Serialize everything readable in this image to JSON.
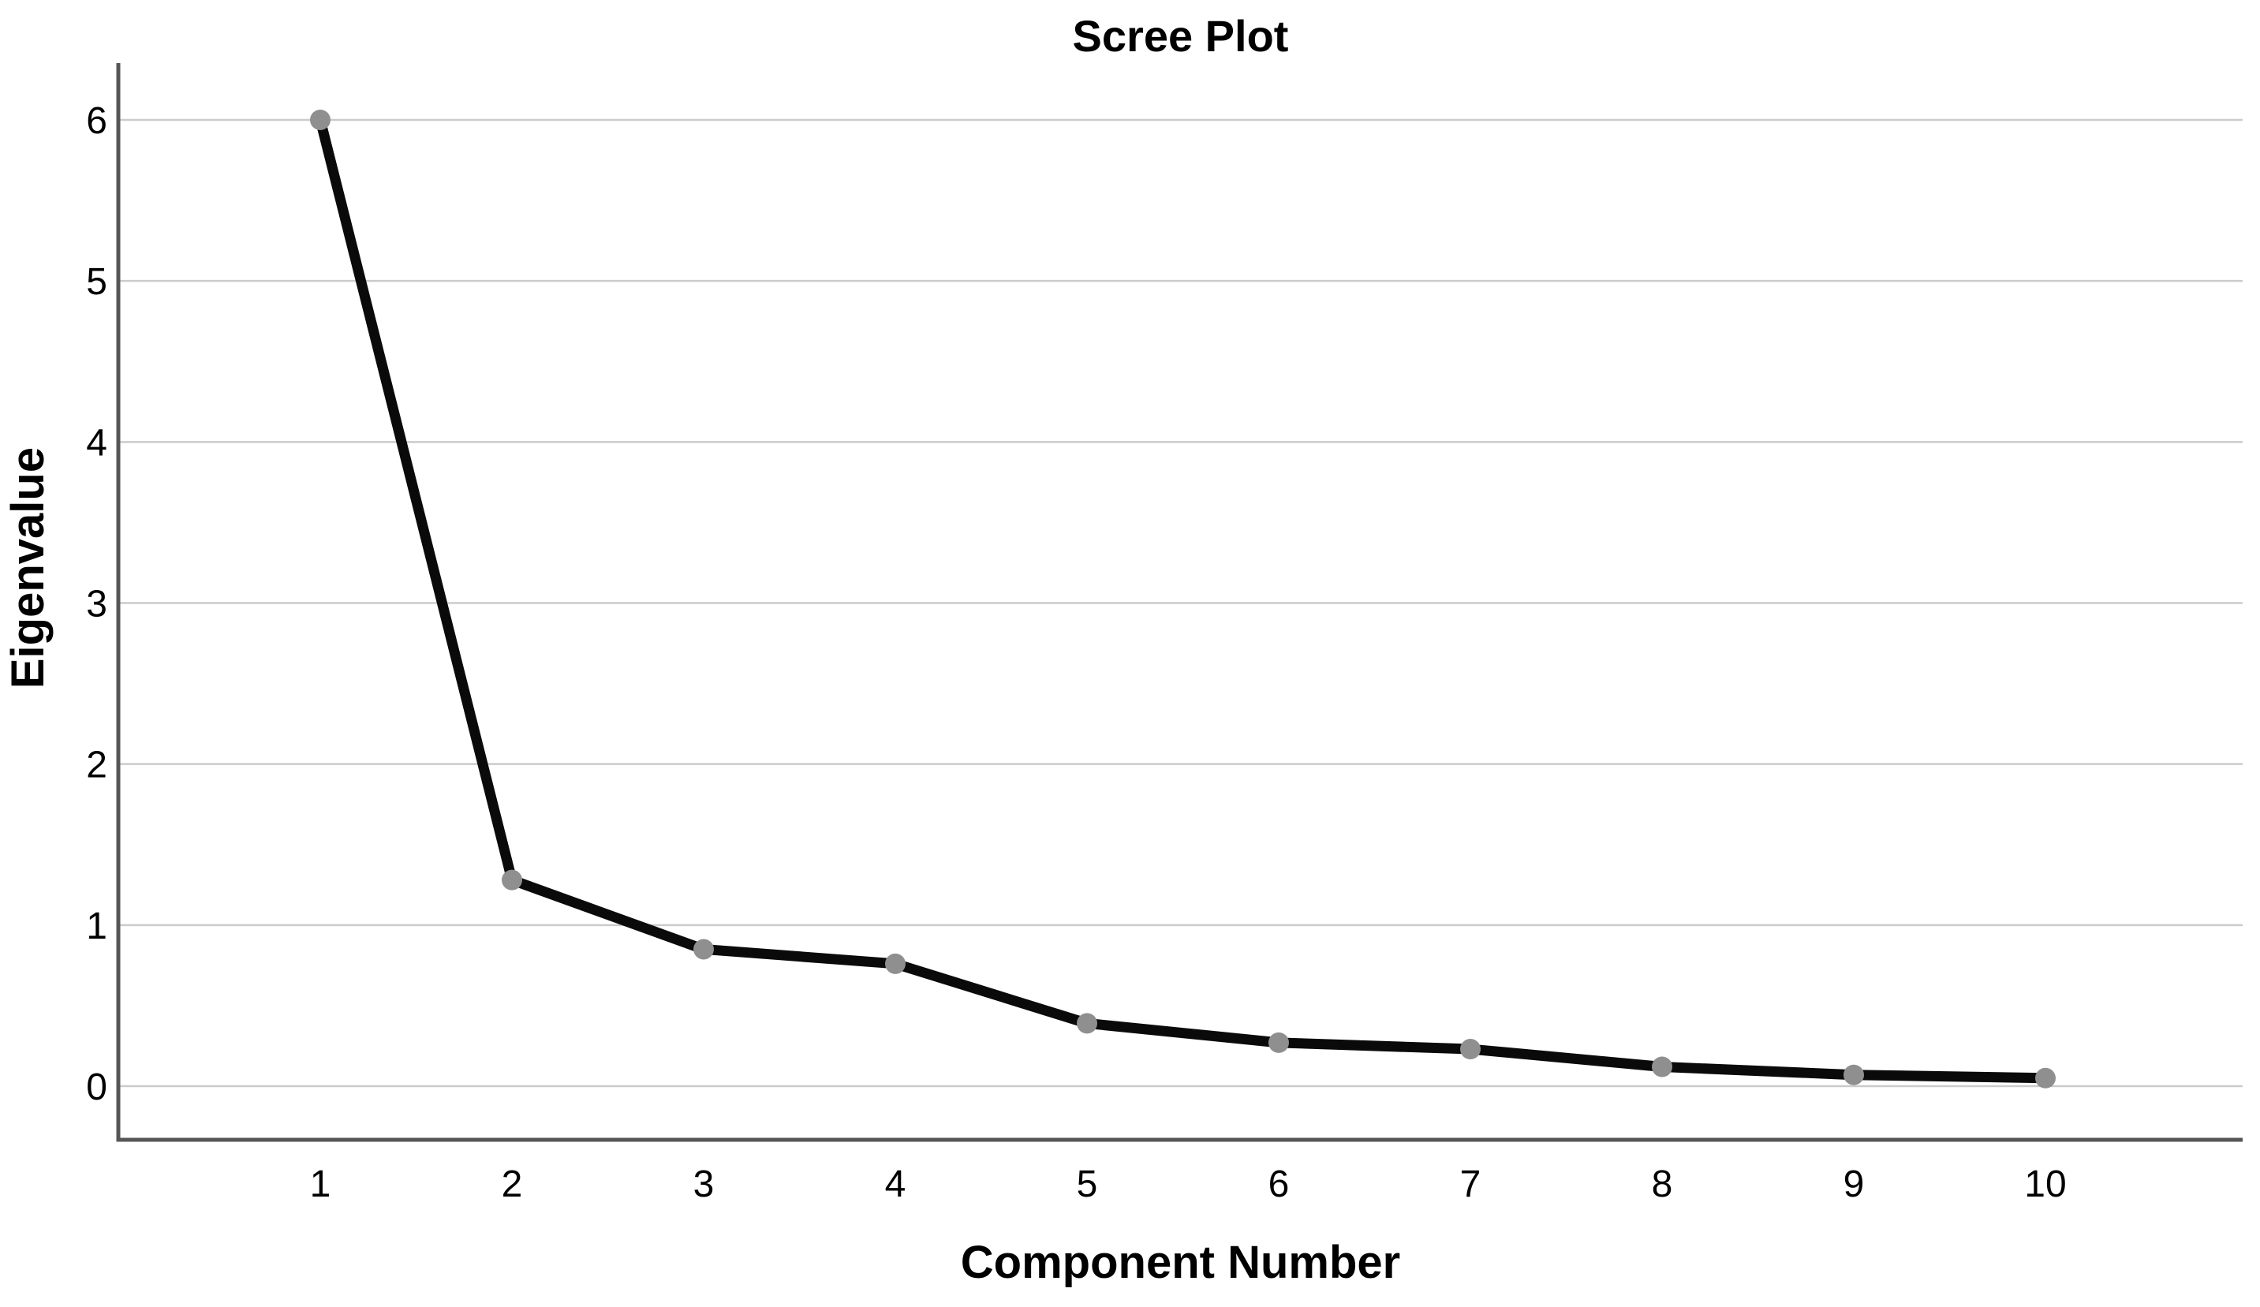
{
  "figure": {
    "title": "Scree Plot",
    "x_axis_title": "Component Number",
    "y_axis_title": "Eigenvalue"
  },
  "chart_data": {
    "type": "line",
    "title": "Scree Plot",
    "xlabel": "Component Number",
    "ylabel": "Eigenvalue",
    "series_name": "Eigenvalue",
    "x": [
      1,
      2,
      3,
      4,
      5,
      6,
      7,
      8,
      9,
      10
    ],
    "x_tick_labels": [
      "1",
      "2",
      "3",
      "4",
      "5",
      "6",
      "7",
      "8",
      "9",
      "10"
    ],
    "values": [
      6.0,
      1.28,
      0.85,
      0.76,
      0.39,
      0.27,
      0.23,
      0.12,
      0.07,
      0.05
    ],
    "y_ticks": [
      0,
      1,
      2,
      3,
      4,
      5,
      6
    ],
    "y_tick_labels": [
      "0",
      "1",
      "2",
      "3",
      "4",
      "5",
      "6"
    ],
    "ylim": [
      -0.33,
      6.35
    ],
    "grid": "horizontal-only",
    "legend": "none",
    "marker": "circle",
    "colors": {
      "line": "#0a0a0a",
      "marker": "#8f8f8f",
      "gridline": "#cbcbcb",
      "axis": "#565656",
      "text": "#000000",
      "background": "#ffffff"
    }
  }
}
